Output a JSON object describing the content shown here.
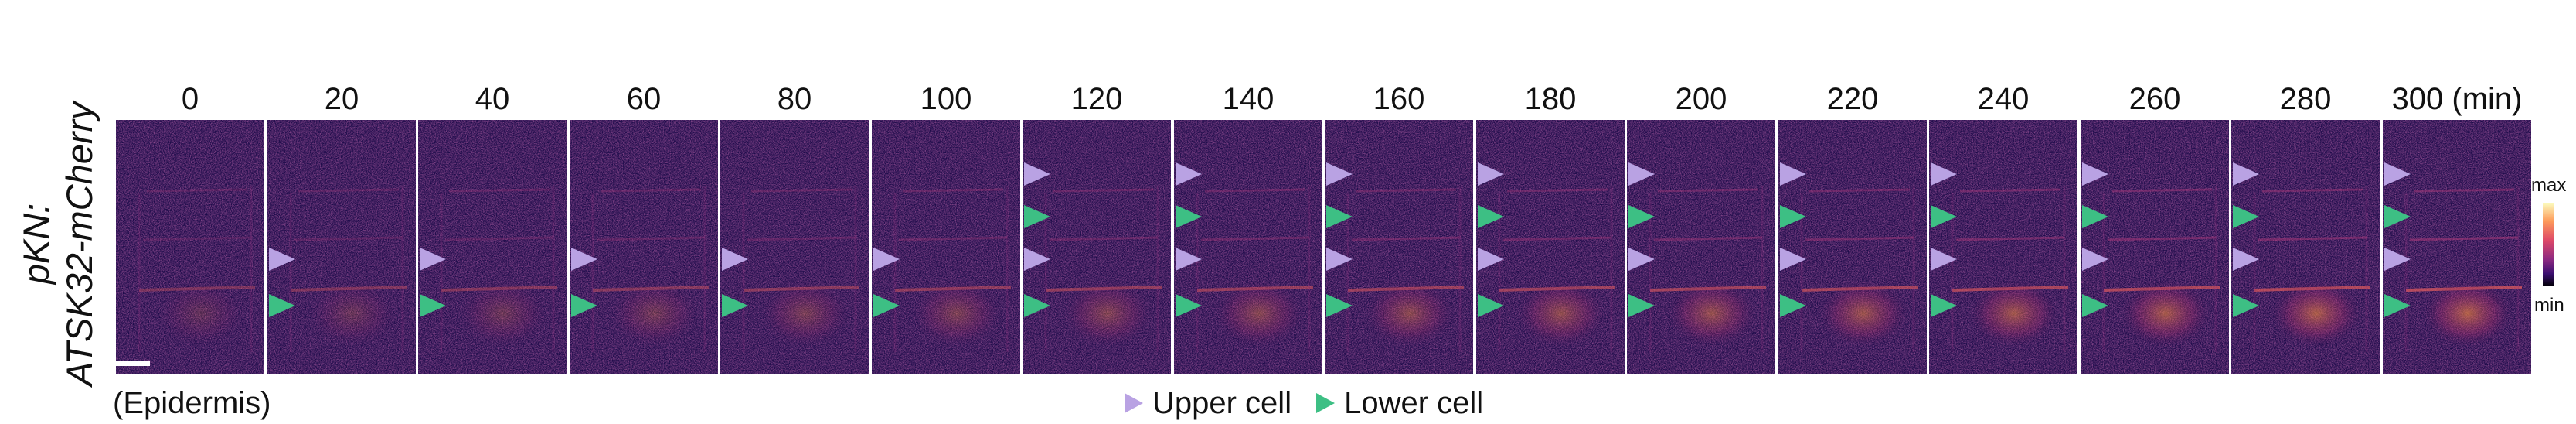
{
  "figure": {
    "y_label_line1": "pKN:",
    "y_label_line2": "ATSK32-mCherry",
    "time_unit": "(min)",
    "region_label": "(Epidermis)",
    "legend": {
      "upper_label": "Upper cell",
      "lower_label": "Lower cell",
      "upper_color": "#b9a2e3",
      "lower_color": "#3dbf84"
    },
    "colorbar": {
      "max_label": "max",
      "min_label": "min",
      "colormap": "inferno"
    },
    "panels": [
      {
        "time": "0"
      },
      {
        "time": "20"
      },
      {
        "time": "40"
      },
      {
        "time": "60"
      },
      {
        "time": "80"
      },
      {
        "time": "100"
      },
      {
        "time": "120"
      },
      {
        "time": "140"
      },
      {
        "time": "160"
      },
      {
        "time": "180"
      },
      {
        "time": "200"
      },
      {
        "time": "220"
      },
      {
        "time": "240"
      },
      {
        "time": "260"
      },
      {
        "time": "280"
      },
      {
        "time": "300"
      }
    ]
  }
}
